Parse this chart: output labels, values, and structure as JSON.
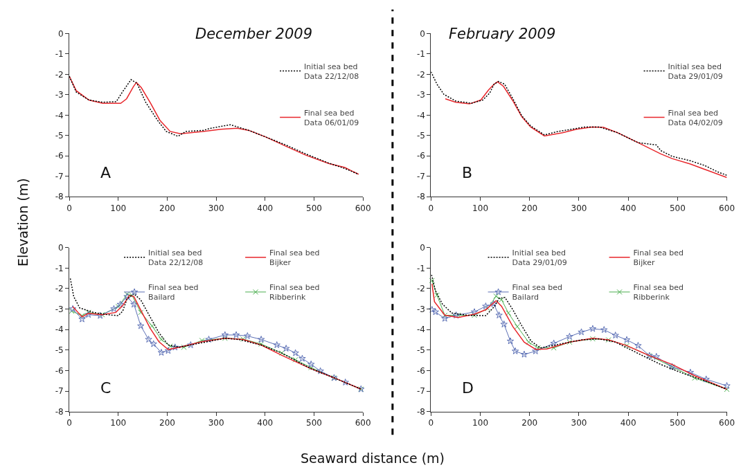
{
  "chart_data": [
    {
      "type": "line",
      "title": "December 2009",
      "ylabel": "Elevation (m)",
      "annotations": [
        "A"
      ],
      "xlim": [
        0,
        600
      ],
      "xticks": [
        0,
        100,
        200,
        300,
        400,
        500,
        600
      ],
      "ylim": [
        -8,
        0
      ],
      "yticks": [
        -8,
        -7,
        -6,
        -5,
        -4,
        -3,
        -2,
        -1,
        0
      ],
      "legend": "top right",
      "series": [
        {
          "name": "Initial sea bed\nData 22/12/08",
          "color": "#000000",
          "line_style": "dotted",
          "marker": "none",
          "x": [
            0,
            14,
            40,
            68,
            96,
            107,
            126,
            138,
            156,
            180,
            198,
            222,
            238,
            273,
            290,
            329,
            367,
            402,
            442,
            483,
            530,
            563,
            591
          ],
          "values": [
            -2.1,
            -2.87,
            -3.26,
            -3.37,
            -3.34,
            -2.92,
            -2.26,
            -2.43,
            -3.37,
            -4.25,
            -4.8,
            -5.04,
            -4.8,
            -4.75,
            -4.64,
            -4.47,
            -4.75,
            -5.08,
            -5.46,
            -5.9,
            -6.35,
            -6.62,
            -6.9
          ]
        },
        {
          "name": "Final sea bed\nData 06/01/09",
          "color": "#e8262b",
          "line_style": "solid",
          "marker": "none",
          "x": [
            0,
            14,
            40,
            68,
            105,
            117,
            131,
            137,
            147,
            166,
            185,
            206,
            227,
            273,
            310,
            343,
            367,
            402,
            442,
            483,
            530,
            563,
            591
          ],
          "values": [
            -2.1,
            -2.8,
            -3.26,
            -3.42,
            -3.42,
            -3.2,
            -2.6,
            -2.4,
            -2.65,
            -3.42,
            -4.25,
            -4.8,
            -4.91,
            -4.8,
            -4.69,
            -4.64,
            -4.75,
            -5.08,
            -5.52,
            -5.96,
            -6.37,
            -6.57,
            -6.9
          ]
        }
      ]
    },
    {
      "type": "line",
      "title": "February 2009",
      "annotations": [
        "B"
      ],
      "xlim": [
        0,
        600
      ],
      "xticks": [
        0,
        100,
        200,
        300,
        400,
        500,
        600
      ],
      "ylim": [
        -8,
        0
      ],
      "yticks": [
        -8,
        -7,
        -6,
        -5,
        -4,
        -3,
        -2,
        -1,
        0
      ],
      "legend": "top right",
      "series": [
        {
          "name": "Initial sea bed\nData 29/01/09",
          "color": "#000000",
          "line_style": "dotted",
          "marker": "none",
          "x": [
            0,
            12,
            26,
            50,
            82,
            105,
            119,
            128,
            137,
            149,
            165,
            184,
            202,
            230,
            258,
            286,
            313,
            341,
            378,
            420,
            457,
            466,
            489,
            526,
            554,
            582,
            600
          ],
          "values": [
            -1.88,
            -2.48,
            -2.98,
            -3.31,
            -3.42,
            -3.26,
            -2.92,
            -2.48,
            -2.35,
            -2.48,
            -3.15,
            -4.03,
            -4.53,
            -4.97,
            -4.8,
            -4.69,
            -4.58,
            -4.58,
            -4.86,
            -5.35,
            -5.46,
            -5.74,
            -6.02,
            -6.24,
            -6.46,
            -6.79,
            -6.95
          ]
        },
        {
          "name": "Final sea bed\nData 04/02/09",
          "color": "#e8262b",
          "line_style": "solid",
          "marker": "none",
          "x": [
            29,
            50,
            78,
            101,
            117,
            128,
            135,
            147,
            165,
            184,
            202,
            230,
            267,
            295,
            327,
            350,
            378,
            420,
            466,
            489,
            526,
            563,
            600
          ],
          "values": [
            -3.2,
            -3.37,
            -3.45,
            -3.26,
            -2.76,
            -2.48,
            -2.37,
            -2.59,
            -3.26,
            -4.08,
            -4.58,
            -5.02,
            -4.86,
            -4.69,
            -4.58,
            -4.6,
            -4.86,
            -5.35,
            -5.9,
            -6.13,
            -6.4,
            -6.73,
            -7.06
          ]
        }
      ]
    },
    {
      "type": "line",
      "xlabel": "Seaward distance (m)",
      "annotations": [
        "C"
      ],
      "xlim": [
        0,
        600
      ],
      "xticks": [
        0,
        100,
        200,
        300,
        400,
        500,
        600
      ],
      "ylim": [
        -8,
        0
      ],
      "yticks": [
        -8,
        -7,
        -6,
        -5,
        -4,
        -3,
        -2,
        -1,
        0
      ],
      "legend": "top right",
      "series": [
        {
          "name": "Initial sea bed\nData 22/12/08",
          "color": "#000000",
          "line_style": "dotted",
          "marker": "none",
          "x": [
            2,
            9,
            21,
            49,
            77,
            100,
            109,
            118,
            132,
            146,
            165,
            183,
            202,
            225,
            271,
            318,
            346,
            392,
            434,
            494,
            541,
            596
          ],
          "values": [
            -1.51,
            -2.39,
            -2.94,
            -3.16,
            -3.27,
            -3.32,
            -3.1,
            -2.5,
            -2.26,
            -2.55,
            -3.38,
            -4.15,
            -4.75,
            -4.86,
            -4.64,
            -4.42,
            -4.48,
            -4.75,
            -5.14,
            -5.91,
            -6.35,
            -6.9
          ]
        },
        {
          "name": "Final sea bed\nBijker",
          "color": "#e8262b",
          "line_style": "solid",
          "marker": "none",
          "x": [
            7,
            26,
            39,
            67,
            95,
            109,
            123,
            132,
            146,
            165,
            183,
            202,
            225,
            271,
            318,
            355,
            392,
            434,
            494,
            541,
            596
          ],
          "values": [
            -2.88,
            -3.38,
            -3.21,
            -3.27,
            -3.16,
            -2.83,
            -2.33,
            -2.39,
            -3.05,
            -3.93,
            -4.59,
            -4.97,
            -4.86,
            -4.59,
            -4.42,
            -4.48,
            -4.75,
            -5.25,
            -5.91,
            -6.35,
            -6.9
          ]
        },
        {
          "name": "Final sea bed\nBailard",
          "color": "#5b6fb5",
          "line_style": "solid",
          "marker": "star",
          "x": [
            7,
            26,
            39,
            63,
            91,
            104,
            118,
            132,
            146,
            162,
            172,
            188,
            202,
            216,
            248,
            285,
            318,
            341,
            364,
            392,
            424,
            443,
            462,
            476,
            494,
            513,
            541,
            564,
            596
          ],
          "values": [
            -2.99,
            -3.49,
            -3.27,
            -3.32,
            -2.99,
            -2.77,
            -2.39,
            -2.77,
            -3.82,
            -4.48,
            -4.7,
            -5.12,
            -5.03,
            -4.86,
            -4.75,
            -4.48,
            -4.26,
            -4.26,
            -4.31,
            -4.48,
            -4.75,
            -4.92,
            -5.14,
            -5.41,
            -5.69,
            -6.02,
            -6.35,
            -6.57,
            -6.9
          ]
        },
        {
          "name": "Final sea bed\nRibberink",
          "color": "#4caf50",
          "line_style": "solid",
          "marker": "cross",
          "x": [
            5,
            26,
            39,
            67,
            100,
            118,
            128,
            146,
            169,
            188,
            206,
            234,
            271,
            318,
            355,
            392,
            434,
            462,
            494,
            541,
            596
          ],
          "values": [
            -3.1,
            -3.32,
            -3.16,
            -3.27,
            -2.88,
            -2.28,
            -2.33,
            -3.16,
            -3.82,
            -4.48,
            -4.81,
            -4.86,
            -4.53,
            -4.42,
            -4.46,
            -4.7,
            -5.14,
            -5.47,
            -5.85,
            -6.35,
            -6.9
          ]
        }
      ]
    },
    {
      "type": "line",
      "annotations": [
        "D"
      ],
      "xlim": [
        0,
        600
      ],
      "xticks": [
        0,
        100,
        200,
        300,
        400,
        500,
        600
      ],
      "ylim": [
        -8,
        0
      ],
      "yticks": [
        -8,
        -7,
        -6,
        -5,
        -4,
        -3,
        -2,
        -1,
        0
      ],
      "legend": "top right",
      "series": [
        {
          "name": "Initial sea bed\nData 29/01/09",
          "color": "#000000",
          "line_style": "dotted",
          "marker": "none",
          "x": [
            1,
            9,
            23,
            42,
            74,
            111,
            129,
            138,
            150,
            166,
            185,
            203,
            222,
            258,
            305,
            341,
            374,
            420,
            466,
            512,
            558,
            600
          ],
          "values": [
            -1.33,
            -2.1,
            -2.75,
            -3.19,
            -3.3,
            -3.32,
            -2.86,
            -2.48,
            -2.43,
            -3.03,
            -3.85,
            -4.56,
            -4.89,
            -4.72,
            -4.5,
            -4.45,
            -4.61,
            -5.16,
            -5.7,
            -6.14,
            -6.52,
            -6.91
          ]
        },
        {
          "name": "Final sea bed\nBijker",
          "color": "#e8262b",
          "line_style": "solid",
          "marker": "none",
          "x": [
            2,
            7,
            28,
            55,
            88,
            111,
            132,
            143,
            166,
            189,
            212,
            235,
            281,
            328,
            360,
            397,
            443,
            489,
            535,
            600
          ],
          "values": [
            -1.77,
            -2.64,
            -3.3,
            -3.41,
            -3.25,
            -3.03,
            -2.59,
            -2.86,
            -3.85,
            -4.61,
            -4.96,
            -4.94,
            -4.61,
            -4.42,
            -4.5,
            -4.78,
            -5.27,
            -5.7,
            -6.25,
            -6.91
          ]
        },
        {
          "name": "Final sea bed\nBailard",
          "color": "#5b6fb5",
          "line_style": "solid",
          "marker": "star",
          "x": [
            2,
            9,
            28,
            51,
            88,
            111,
            127,
            138,
            148,
            161,
            171,
            189,
            212,
            249,
            281,
            305,
            328,
            351,
            374,
            397,
            420,
            443,
            457,
            489,
            526,
            558,
            600
          ],
          "values": [
            -3.03,
            -3.14,
            -3.46,
            -3.3,
            -3.14,
            -2.86,
            -2.75,
            -3.3,
            -3.74,
            -4.56,
            -5.05,
            -5.21,
            -5.05,
            -4.67,
            -4.34,
            -4.12,
            -3.96,
            -4.01,
            -4.28,
            -4.5,
            -4.78,
            -5.27,
            -5.32,
            -5.81,
            -6.09,
            -6.42,
            -6.74
          ]
        },
        {
          "name": "Final sea bed\nRibberink",
          "color": "#4caf50",
          "line_style": "solid",
          "marker": "cross",
          "x": [
            2,
            12,
            28,
            55,
            88,
            115,
            132,
            143,
            157,
            175,
            198,
            217,
            249,
            281,
            328,
            360,
            397,
            443,
            489,
            535,
            600
          ],
          "values": [
            -1.61,
            -2.32,
            -3.3,
            -3.3,
            -3.3,
            -2.97,
            -2.37,
            -2.54,
            -3.19,
            -3.85,
            -4.61,
            -4.89,
            -4.89,
            -4.61,
            -4.45,
            -4.5,
            -4.78,
            -5.27,
            -5.81,
            -6.36,
            -6.91
          ]
        }
      ]
    }
  ]
}
